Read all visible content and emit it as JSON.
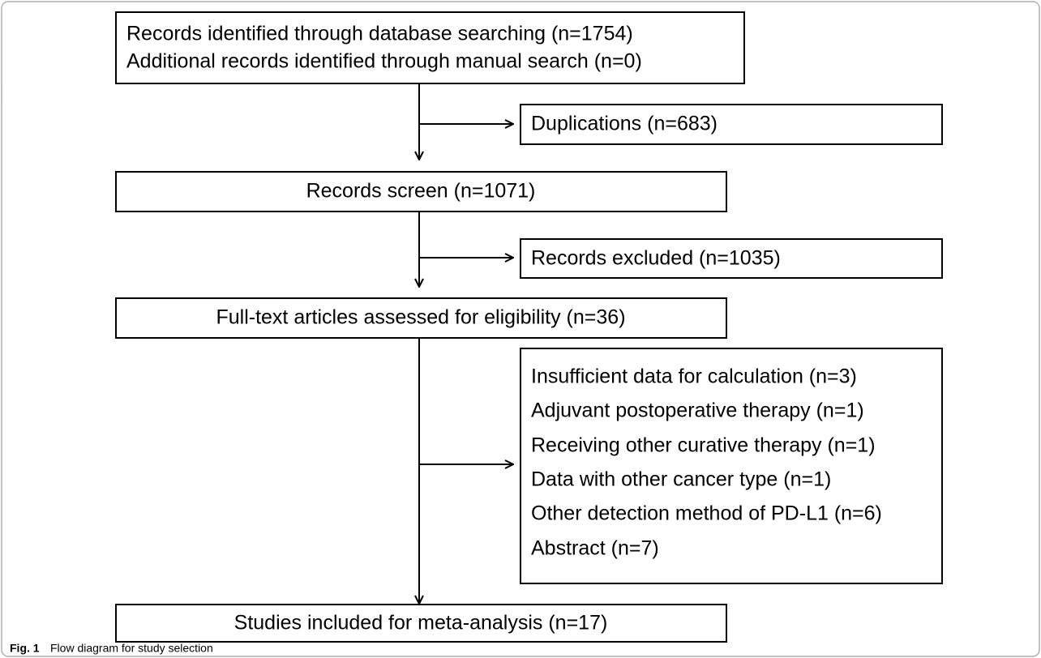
{
  "nodes": [
    {
      "lines": [
        "Records identified through database searching (n=1754)",
        "Additional records identified through manual search (n=0)"
      ]
    },
    {
      "lines": [
        "Duplications (n=683)"
      ]
    },
    {
      "lines": [
        "Records screen (n=1071)"
      ]
    },
    {
      "lines": [
        "Records excluded (n=1035)"
      ]
    },
    {
      "lines": [
        "Full-text articles assessed for eligibility (n=36)"
      ]
    },
    {
      "lines": [
        "Insufficient data for calculation (n=3)",
        "Adjuvant postoperative therapy (n=1)",
        "Receiving other curative therapy (n=1)",
        "Data with other cancer type (n=1)",
        "Other detection method of PD-L1 (n=6)",
        "Abstract (n=7)"
      ]
    },
    {
      "lines": [
        "Studies included for meta-analysis (n=17)"
      ]
    }
  ],
  "caption": {
    "label": "Fig. 1",
    "text": "Flow diagram for study selection"
  }
}
